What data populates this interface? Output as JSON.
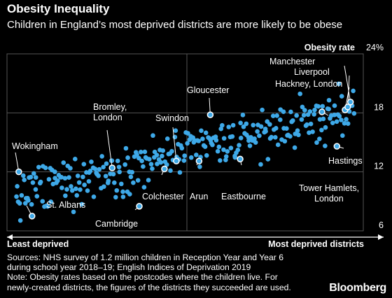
{
  "colors": {
    "background": "#000000",
    "point": "#3ea9e8",
    "highlight": "#ffffff",
    "text": "#ffffff",
    "grid": "#555555"
  },
  "title": "Obesity Inequality",
  "subtitle": "Children in England’s most deprived districts are more likely to be obese",
  "source_lines": [
    "Sources: NHS survey of 1.2 million children in Reception Year and Year 6",
    "during school year 2018–19; English Indices of Deprivation 2019",
    "Note: Obesity rates based on the postcodes where the children live. For",
    "newly-created districts, the figures of the districts they succeeded are used."
  ],
  "brand": "Bloomberg",
  "chart_data": {
    "type": "scatter",
    "title": "Obesity Inequality",
    "subtitle": "Children in England’s most deprived districts are more likely to be obese",
    "xlabel_left": "Least deprived",
    "xlabel_right": "Most deprived districts",
    "ylabel": "Obesity rate",
    "ylim": [
      6,
      24
    ],
    "yticks": [
      6,
      12,
      18,
      24
    ],
    "ytick_labels": [
      "6",
      "12",
      "18",
      "24%"
    ],
    "xlim": [
      0,
      100
    ],
    "grid": true,
    "highlighted": [
      {
        "name": "Wokingham",
        "x": 1.0,
        "y": 12.0
      },
      {
        "name": "St. Albans",
        "x": 4.9,
        "y": 7.5
      },
      {
        "name": "Bromley, London",
        "x": 28.5,
        "y": 12.4
      },
      {
        "name": "Cambridge",
        "x": 36.5,
        "y": 8.5
      },
      {
        "name": "Colchester",
        "x": 43.9,
        "y": 12.3
      },
      {
        "name": "Swindon",
        "x": 47.4,
        "y": 13.1
      },
      {
        "name": "Arun",
        "x": 54.1,
        "y": 13.1
      },
      {
        "name": "Gloucester",
        "x": 57.4,
        "y": 17.8
      },
      {
        "name": "Eastbourne",
        "x": 66.2,
        "y": 13.3
      },
      {
        "name": "Tower Hamlets, London",
        "x": 90.3,
        "y": 18.1
      },
      {
        "name": "Hastings",
        "x": 94.7,
        "y": 14.6
      },
      {
        "name": "Hackney, London",
        "x": 97.1,
        "y": 18.3
      },
      {
        "name": "Liverpool",
        "x": 97.9,
        "y": 18.6
      },
      {
        "name": "Manchester",
        "x": 98.7,
        "y": 19.1
      }
    ],
    "points_seed": {
      "count": 300,
      "trend": [
        {
          "x": 0,
          "y": 9.6
        },
        {
          "x": 100,
          "y": 18.3
        }
      ],
      "spread": 2.4
    }
  }
}
